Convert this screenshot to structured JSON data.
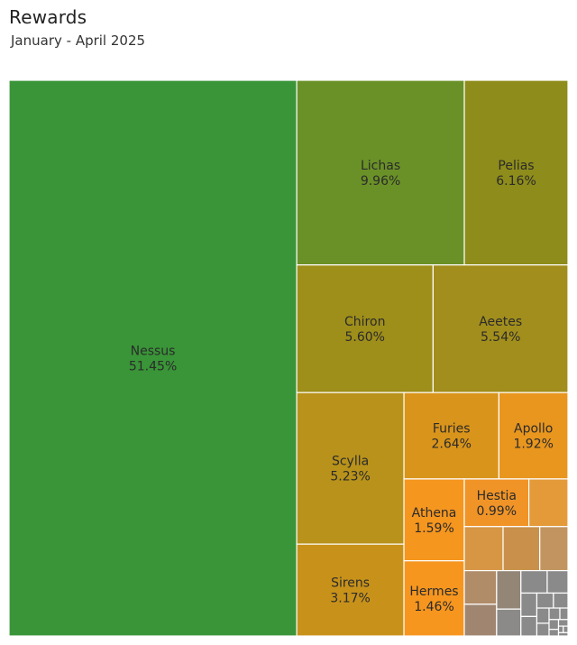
{
  "header": {
    "title": "Rewards",
    "subtitle": "January - April 2025"
  },
  "chart_data": {
    "type": "treemap",
    "title": "Rewards",
    "subtitle": "January - April 2025",
    "value_unit": "%",
    "items": [
      {
        "name": "Nessus",
        "value": 51.45,
        "label": "Nessus\n51.45%",
        "color": "#399537"
      },
      {
        "name": "Lichas",
        "value": 9.96,
        "label": "Lichas\n9.96%",
        "color": "#6a9127"
      },
      {
        "name": "Pelias",
        "value": 6.16,
        "label": "Pelias\n6.16%",
        "color": "#8e8c1a"
      },
      {
        "name": "Chiron",
        "value": 5.6,
        "label": "Chiron\n5.60%",
        "color": "#9e8e1a"
      },
      {
        "name": "Aeetes",
        "value": 5.54,
        "label": "Aeetes\n5.54%",
        "color": "#a28e1c"
      },
      {
        "name": "Scylla",
        "value": 5.23,
        "label": "Scylla\n5.23%",
        "color": "#b8921a"
      },
      {
        "name": "Sirens",
        "value": 3.17,
        "label": "Sirens\n3.17%",
        "color": "#c8921a"
      },
      {
        "name": "Furies",
        "value": 2.64,
        "label": "Furies\n2.64%",
        "color": "#d9941b"
      },
      {
        "name": "Apollo",
        "value": 1.92,
        "label": "Apollo\n1.92%",
        "color": "#e8961e"
      },
      {
        "name": "Athena",
        "value": 1.59,
        "label": "Athena\n1.59%",
        "color": "#f5961f"
      },
      {
        "name": "Hermes",
        "value": 1.46,
        "label": "Hermes\n1.46%",
        "color": "#f6961f"
      },
      {
        "name": "Hestia",
        "value": 0.99,
        "label": "Hestia\n0.99%",
        "color": "#f09428"
      },
      {
        "value": 0.6,
        "color": "#e59a3a"
      },
      {
        "value": 0.55,
        "color": "#d79644"
      },
      {
        "value": 0.52,
        "color": "#c8904a"
      },
      {
        "value": 0.4,
        "color": "#c29560"
      },
      {
        "value": 0.35,
        "color": "#b08c68"
      },
      {
        "value": 0.33,
        "color": "#a08670"
      },
      {
        "value": 0.3,
        "color": "#938676"
      },
      {
        "value": 0.21,
        "color": "#8c8a88"
      },
      {
        "value": 0.19,
        "color": "#8a8a8a"
      },
      {
        "value": 0.15,
        "color": "#8a8a8a"
      },
      {
        "value": 0.12,
        "color": "#8a8a8a"
      },
      {
        "value": 0.1,
        "color": "#8a8a8a"
      },
      {
        "value": 0.08,
        "color": "#8a8a8a"
      },
      {
        "value": 0.07,
        "color": "#8a8a8a"
      },
      {
        "value": 0.06,
        "color": "#8a8a8a"
      },
      {
        "value": 0.05,
        "color": "#8a8a8a"
      },
      {
        "value": 0.04,
        "color": "#8a8a8a"
      },
      {
        "value": 0.03,
        "color": "#8a8a8a"
      },
      {
        "value": 0.03,
        "color": "#8a8a8a"
      },
      {
        "value": 0.02,
        "color": "#8a8a8a"
      },
      {
        "value": 0.02,
        "color": "#8a8a8a"
      },
      {
        "value": 0.01,
        "color": "#8a8a8a"
      },
      {
        "value": 0.01,
        "color": "#8a8a8a"
      },
      {
        "value": 0.01,
        "color": "#8a8a8a"
      }
    ]
  }
}
